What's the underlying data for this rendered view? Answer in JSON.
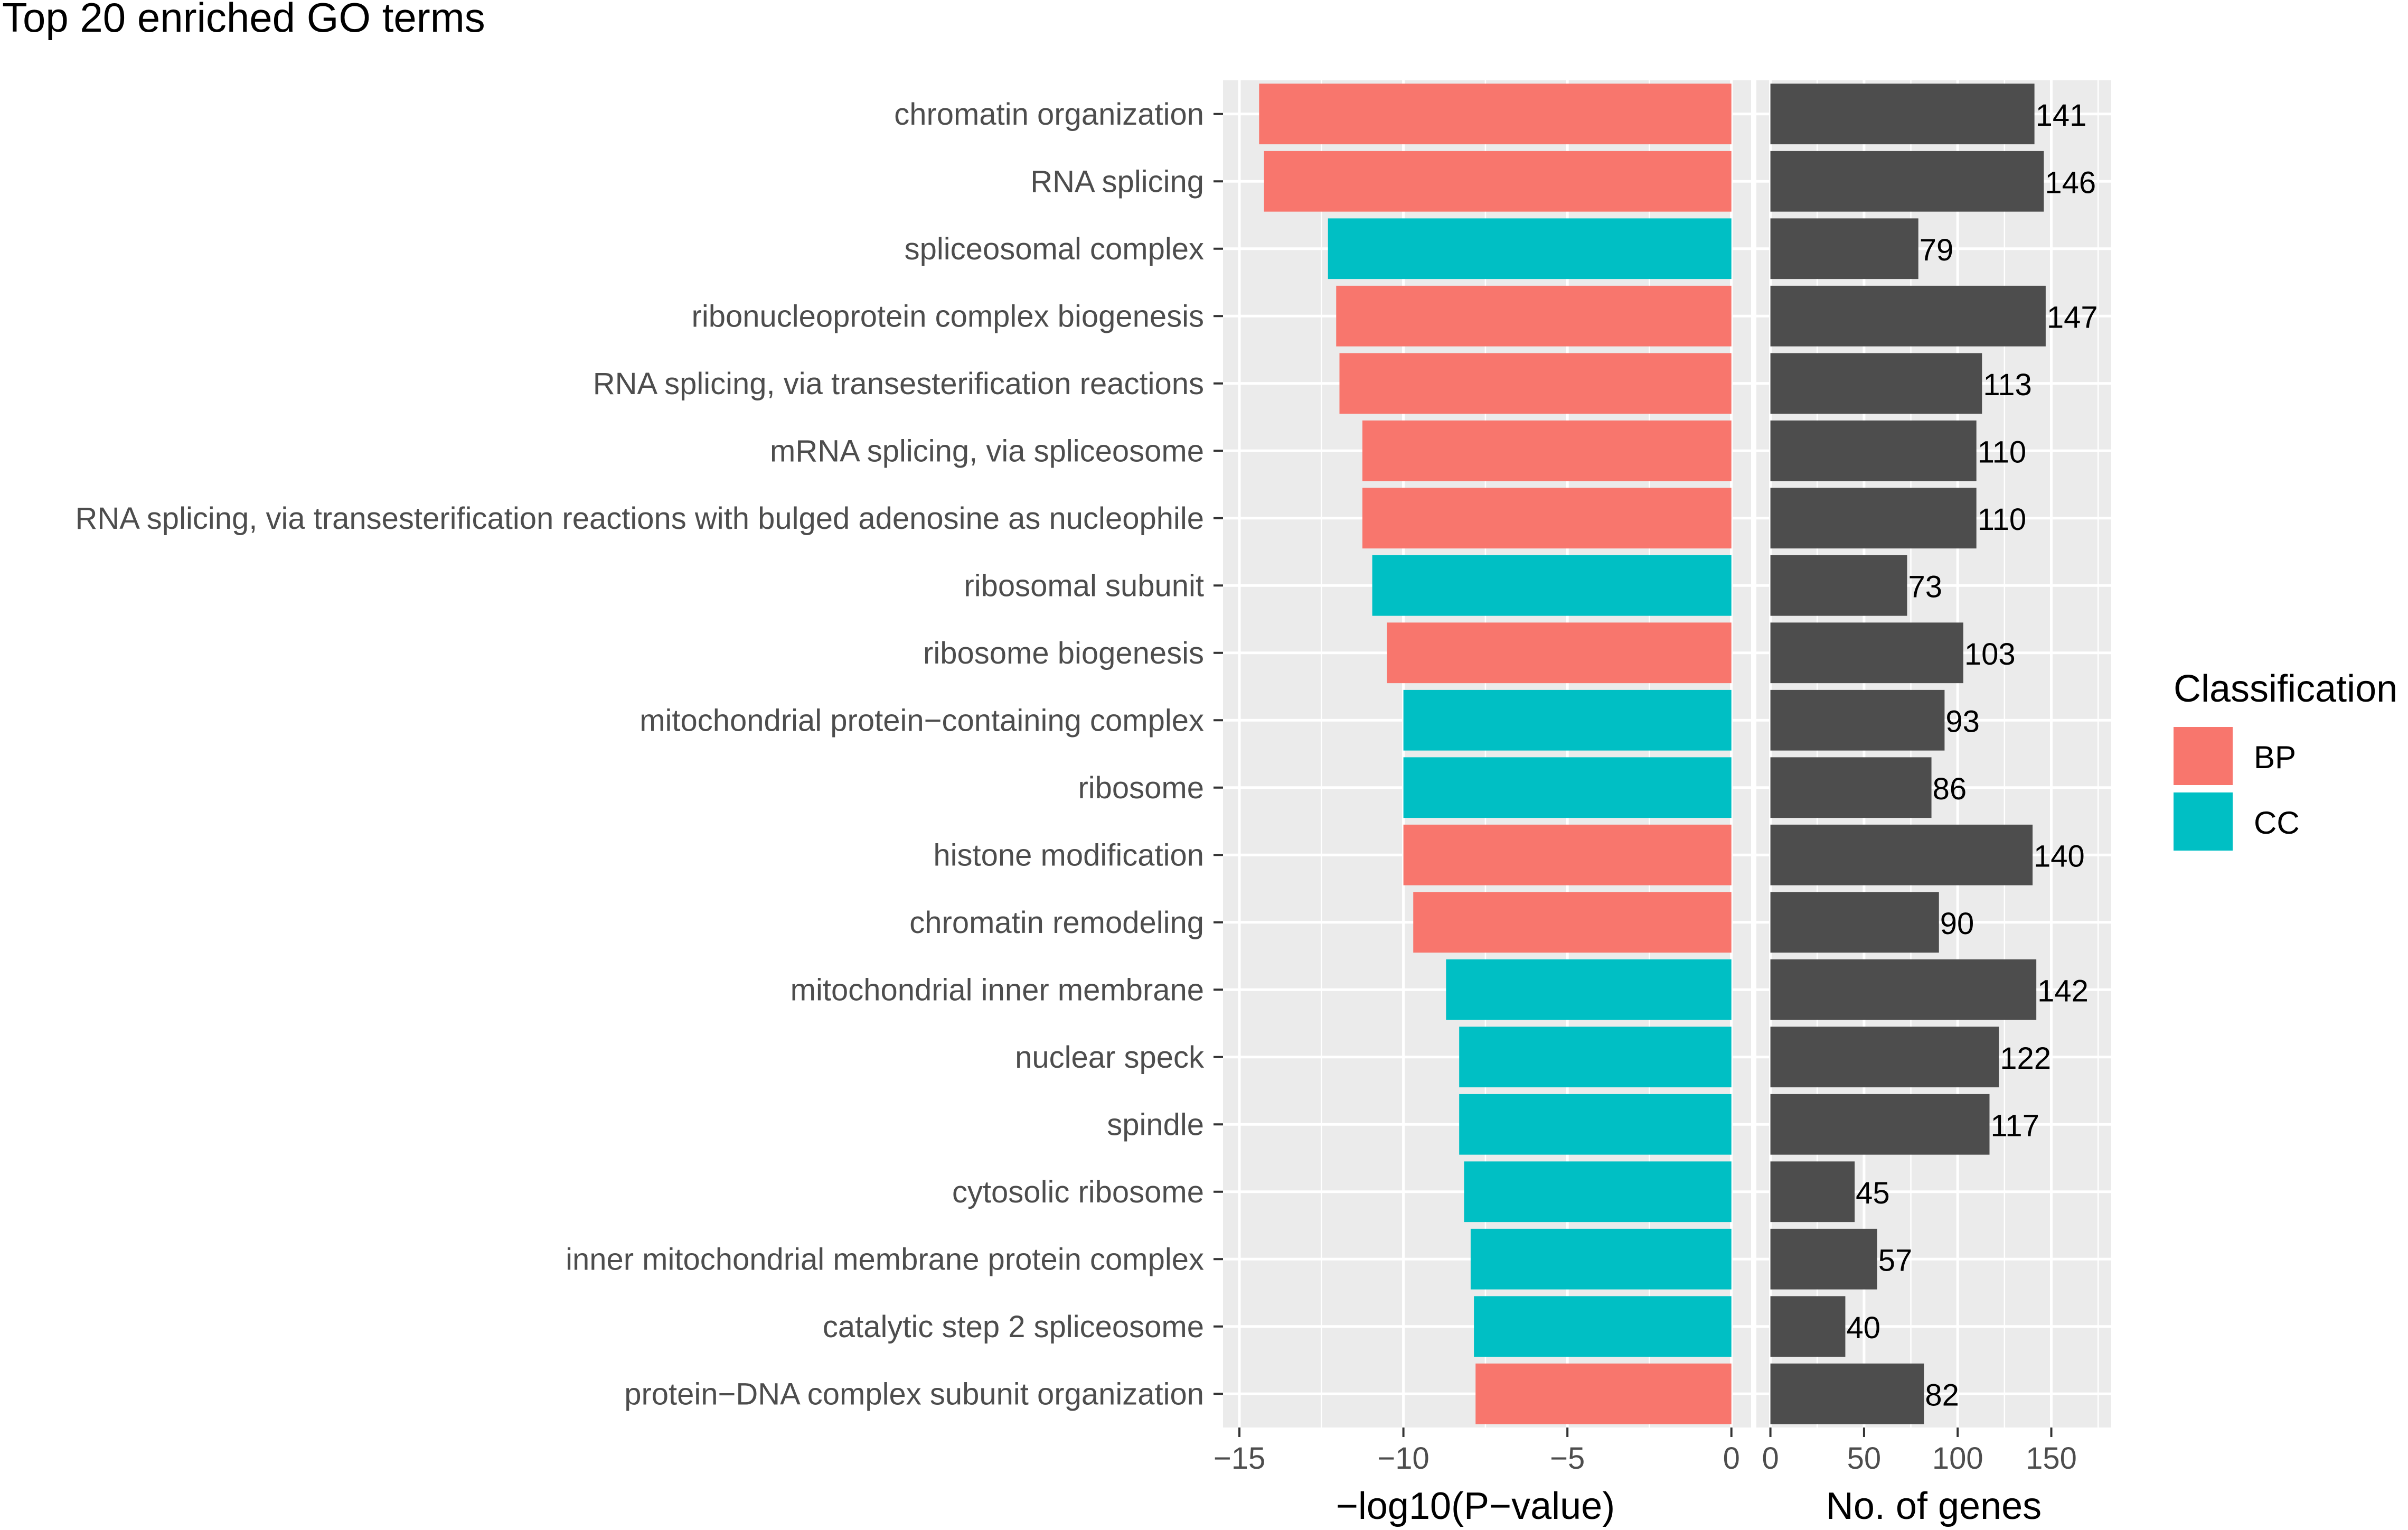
{
  "chart_data": [
    {
      "type": "bar",
      "orientation": "horizontal",
      "title": "Top 20 enriched GO terms",
      "xlabel": "−log10(P−value)",
      "ylabel": "",
      "xlim": [
        -15.5,
        0.6
      ],
      "xticks": [
        -15,
        -10,
        -5,
        0
      ],
      "xtick_labels": [
        "−15",
        "−10",
        "−5",
        "0"
      ],
      "grid": true,
      "categories": [
        "chromatin organization",
        "RNA splicing",
        "spliceosomal complex",
        "ribonucleoprotein complex biogenesis",
        "RNA splicing, via transesterification reactions",
        "mRNA splicing, via spliceosome",
        "RNA splicing, via transesterification reactions with bulged adenosine as nucleophile",
        "ribosomal subunit",
        "ribosome biogenesis",
        "mitochondrial protein−containing complex",
        "ribosome",
        "histone modification",
        "chromatin remodeling",
        "mitochondrial inner membrane",
        "nuclear speck",
        "spindle",
        "cytosolic ribosome",
        "inner mitochondrial membrane protein complex",
        "catalytic step 2 spliceosome",
        "protein−DNA complex subunit organization"
      ],
      "values": [
        -14.4,
        -14.25,
        -12.3,
        -12.05,
        -11.95,
        -11.25,
        -11.25,
        -10.95,
        -10.5,
        -10.0,
        -10.0,
        -10.0,
        -9.7,
        -8.7,
        -8.3,
        -8.3,
        -8.15,
        -7.95,
        -7.85,
        -7.8
      ],
      "classification": [
        "BP",
        "BP",
        "CC",
        "BP",
        "BP",
        "BP",
        "BP",
        "CC",
        "BP",
        "CC",
        "CC",
        "BP",
        "BP",
        "CC",
        "CC",
        "CC",
        "CC",
        "CC",
        "CC",
        "BP"
      ]
    },
    {
      "type": "bar",
      "orientation": "horizontal",
      "title": "",
      "xlabel": "No. of genes",
      "xlim": [
        -7.5,
        182
      ],
      "xticks": [
        0,
        50,
        100,
        150
      ],
      "xtick_labels": [
        "0",
        "50",
        "100",
        "150"
      ],
      "grid": true,
      "values": [
        141,
        146,
        79,
        147,
        113,
        110,
        110,
        73,
        103,
        93,
        86,
        140,
        90,
        142,
        122,
        117,
        45,
        57,
        40,
        82
      ],
      "value_labels": [
        "141",
        "146",
        "79",
        "147",
        "113",
        "110",
        "110",
        "73",
        "103",
        "93",
        "86",
        "140",
        "90",
        "142",
        "122",
        "117",
        "45",
        "57",
        "40",
        "82"
      ]
    }
  ],
  "legend": {
    "title": "Classification",
    "placement": "right",
    "entries": [
      {
        "label": "BP",
        "color": "#F8766D"
      },
      {
        "label": "CC",
        "color": "#00BFC4"
      }
    ]
  },
  "colors": {
    "BP": "#F8766D",
    "CC": "#00BFC4",
    "gene_bar": "#4D4D4D",
    "panel": "#EBEBEB",
    "grid": "#FFFFFF"
  }
}
